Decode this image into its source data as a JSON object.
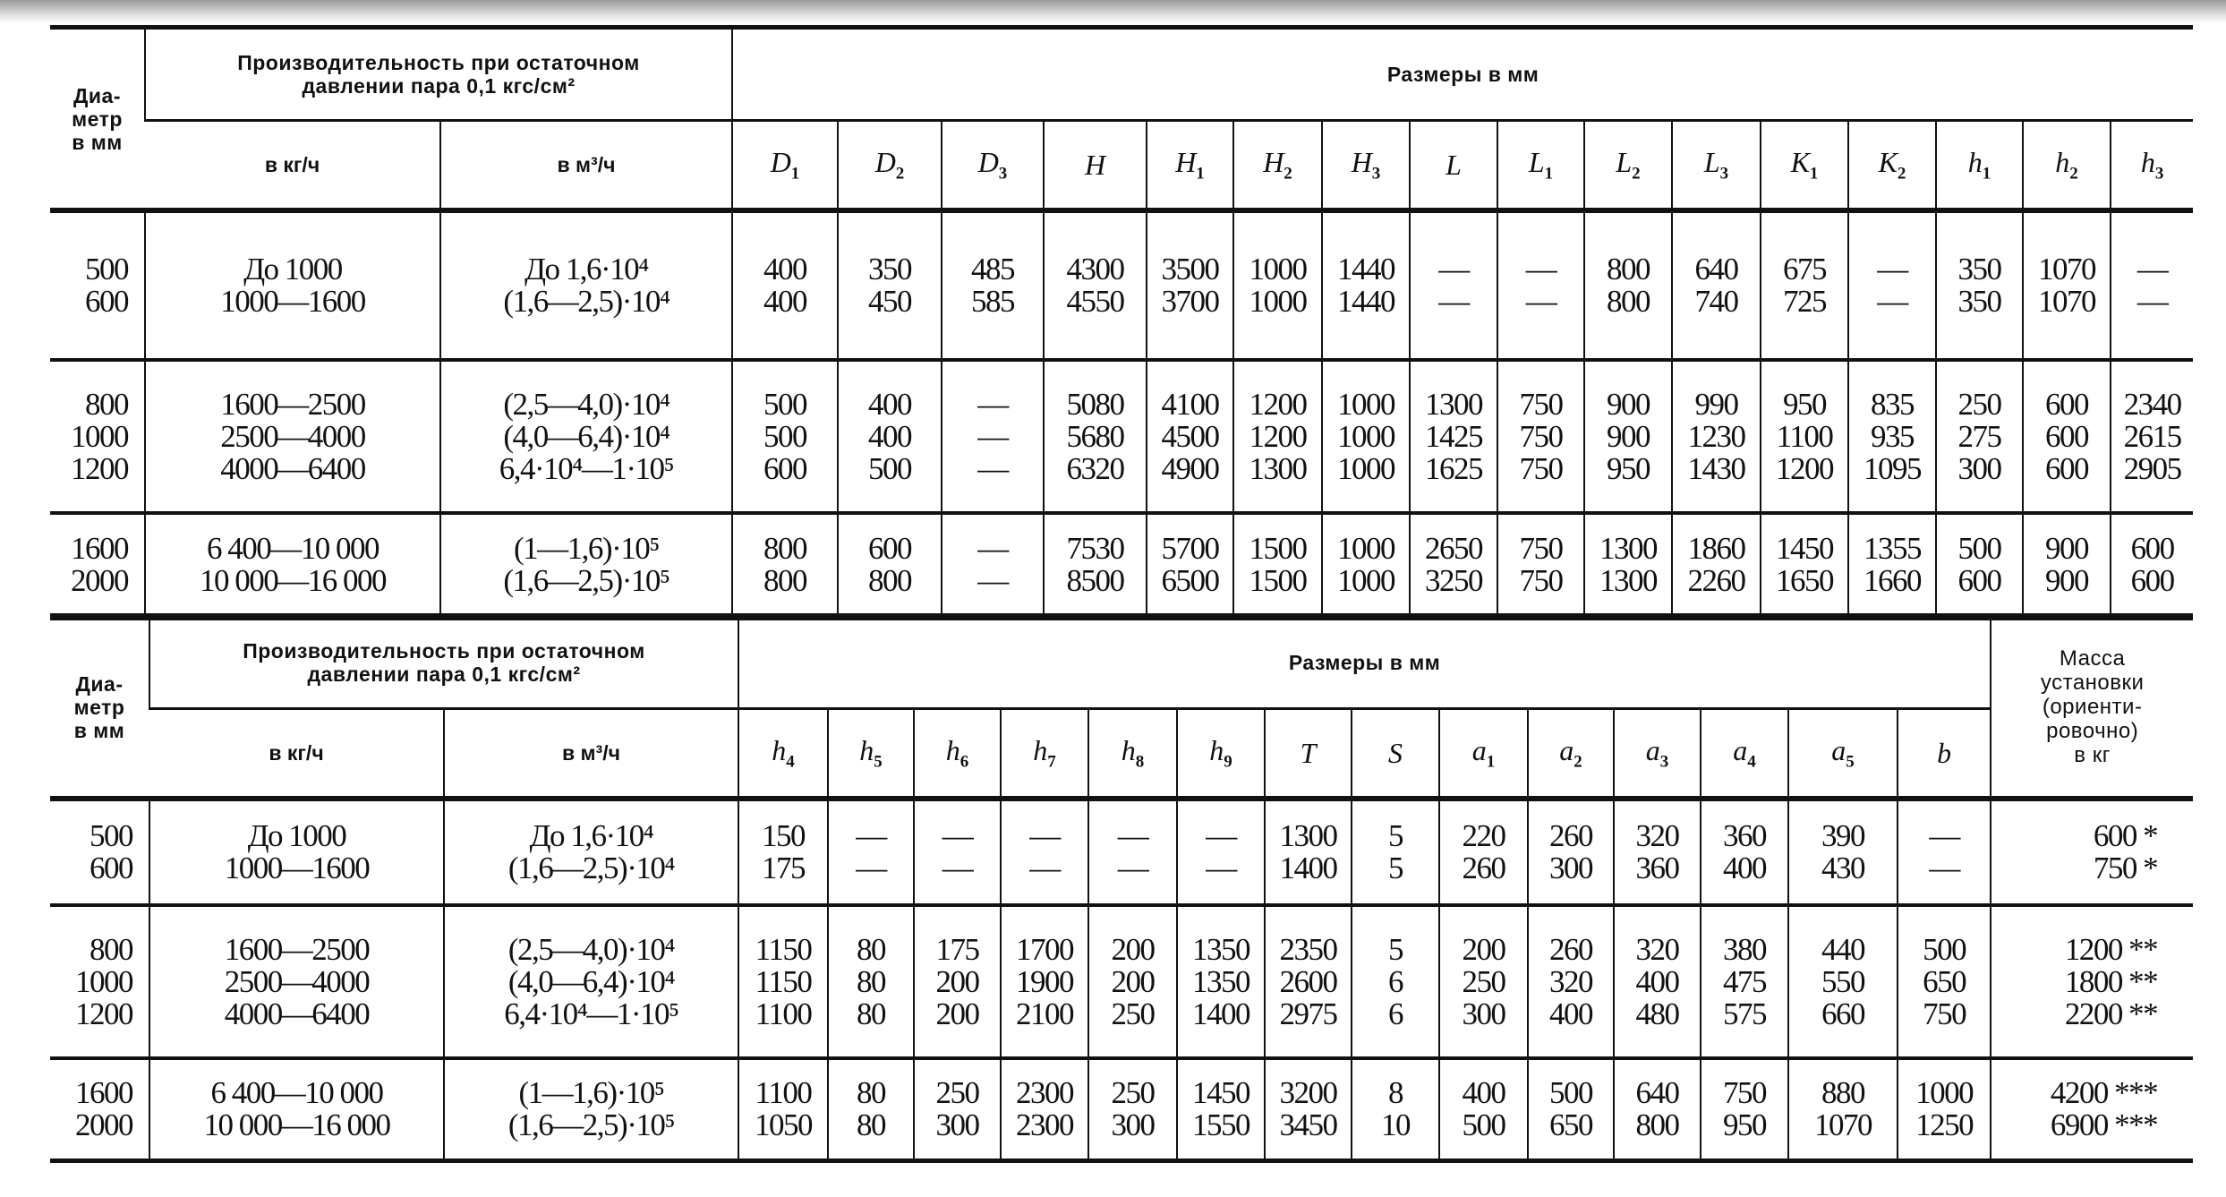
{
  "top_table": {
    "header": {
      "diameter": "Диа-\nметр\nв мм",
      "performance": "Производительность при остаточном\nдавлении пара 0,1 кгс/см²",
      "sizes": "Размеры в мм",
      "kg_per_h": "в кг/ч",
      "m3_per_h": "в м³/ч",
      "dims": [
        [
          "D",
          "1"
        ],
        [
          "D",
          "2"
        ],
        [
          "D",
          "3"
        ],
        [
          "H",
          ""
        ],
        [
          "H",
          "1"
        ],
        [
          "H",
          "2"
        ],
        [
          "H",
          "3"
        ],
        [
          "L",
          ""
        ],
        [
          "L",
          "1"
        ],
        [
          "L",
          "2"
        ],
        [
          "L",
          "3"
        ],
        [
          "K",
          "1"
        ],
        [
          "K",
          "2"
        ],
        [
          "h",
          "1"
        ],
        [
          "h",
          "2"
        ],
        [
          "h",
          "3"
        ]
      ]
    },
    "groups": [
      {
        "rows": [
          [
            "500",
            "До 1000",
            "До 1,6·10⁴",
            "400",
            "350",
            "485",
            "4300",
            "3500",
            "1000",
            "1440",
            "—",
            "—",
            "800",
            "640",
            "675",
            "—",
            "350",
            "1070",
            "—"
          ],
          [
            "600",
            "1000—1600",
            "(1,6—2,5)·10⁴",
            "400",
            "450",
            "585",
            "4550",
            "3700",
            "1000",
            "1440",
            "—",
            "—",
            "800",
            "740",
            "725",
            "—",
            "350",
            "1070",
            "—"
          ]
        ]
      },
      {
        "rows": [
          [
            "800",
            "1600—2500",
            "(2,5—4,0)·10⁴",
            "500",
            "400",
            "—",
            "5080",
            "4100",
            "1200",
            "1000",
            "1300",
            "750",
            "900",
            "990",
            "950",
            "835",
            "250",
            "600",
            "2340"
          ],
          [
            "1000",
            "2500—4000",
            "(4,0—6,4)·10⁴",
            "500",
            "400",
            "—",
            "5680",
            "4500",
            "1200",
            "1000",
            "1425",
            "750",
            "900",
            "1230",
            "1100",
            "935",
            "275",
            "600",
            "2615"
          ],
          [
            "1200",
            "4000—6400",
            "6,4·10⁴—1·10⁵",
            "600",
            "500",
            "—",
            "6320",
            "4900",
            "1300",
            "1000",
            "1625",
            "750",
            "950",
            "1430",
            "1200",
            "1095",
            "300",
            "600",
            "2905"
          ]
        ]
      },
      {
        "rows": [
          [
            "1600",
            "6 400—10 000",
            "(1—1,6)·10⁵",
            "800",
            "600",
            "—",
            "7530",
            "5700",
            "1500",
            "1000",
            "2650",
            "750",
            "1300",
            "1860",
            "1450",
            "1355",
            "500",
            "900",
            "600"
          ],
          [
            "2000",
            "10 000—16 000",
            "(1,6—2,5)·10⁵",
            "800",
            "800",
            "—",
            "8500",
            "6500",
            "1500",
            "1000",
            "3250",
            "750",
            "1300",
            "2260",
            "1650",
            "1660",
            "600",
            "900",
            "600"
          ]
        ]
      }
    ]
  },
  "bottom_table": {
    "header": {
      "diameter": "Диа-\nметр\nв мм",
      "performance": "Производительность при остаточном\nдавлении пара 0,1 кгс/см²",
      "sizes": "Размеры в мм",
      "mass": "Масса\nустановки\n(ориенти-\nровочно)\nв кг",
      "kg_per_h": "в кг/ч",
      "m3_per_h": "в м³/ч",
      "dims": [
        [
          "h",
          "4"
        ],
        [
          "h",
          "5"
        ],
        [
          "h",
          "6"
        ],
        [
          "h",
          "7"
        ],
        [
          "h",
          "8"
        ],
        [
          "h",
          "9"
        ],
        [
          "T",
          ""
        ],
        [
          "S",
          ""
        ],
        [
          "a",
          "1"
        ],
        [
          "a",
          "2"
        ],
        [
          "a",
          "3"
        ],
        [
          "a",
          "4"
        ],
        [
          "a",
          "5"
        ],
        [
          "b",
          ""
        ]
      ]
    },
    "groups": [
      {
        "rows": [
          [
            "500",
            "До 1000",
            "До 1,6·10⁴",
            "150",
            "—",
            "—",
            "—",
            "—",
            "—",
            "1300",
            "5",
            "220",
            "260",
            "320",
            "360",
            "390",
            "—",
            "600 *"
          ],
          [
            "600",
            "1000—1600",
            "(1,6—2,5)·10⁴",
            "175",
            "—",
            "—",
            "—",
            "—",
            "—",
            "1400",
            "5",
            "260",
            "300",
            "360",
            "400",
            "430",
            "—",
            "750 *"
          ]
        ]
      },
      {
        "rows": [
          [
            "800",
            "1600—2500",
            "(2,5—4,0)·10⁴",
            "1150",
            "80",
            "175",
            "1700",
            "200",
            "1350",
            "2350",
            "5",
            "200",
            "260",
            "320",
            "380",
            "440",
            "500",
            "1200 **"
          ],
          [
            "1000",
            "2500—4000",
            "(4,0—6,4)·10⁴",
            "1150",
            "80",
            "200",
            "1900",
            "200",
            "1350",
            "2600",
            "6",
            "250",
            "320",
            "400",
            "475",
            "550",
            "650",
            "1800 **"
          ],
          [
            "1200",
            "4000—6400",
            "6,4·10⁴—1·10⁵",
            "1100",
            "80",
            "200",
            "2100",
            "250",
            "1400",
            "2975",
            "6",
            "300",
            "400",
            "480",
            "575",
            "660",
            "750",
            "2200 **"
          ]
        ]
      },
      {
        "rows": [
          [
            "1600",
            "6 400—10 000",
            "(1—1,6)·10⁵",
            "1100",
            "80",
            "250",
            "2300",
            "250",
            "1450",
            "3200",
            "8",
            "400",
            "500",
            "640",
            "750",
            "880",
            "1000",
            "4200 ***"
          ],
          [
            "2000",
            "10 000—16 000",
            "(1,6—2,5)·10⁵",
            "1050",
            "80",
            "300",
            "2300",
            "300",
            "1550",
            "3450",
            "10",
            "500",
            "650",
            "800",
            "950",
            "1070",
            "1250",
            "6900 ***"
          ]
        ]
      }
    ]
  }
}
